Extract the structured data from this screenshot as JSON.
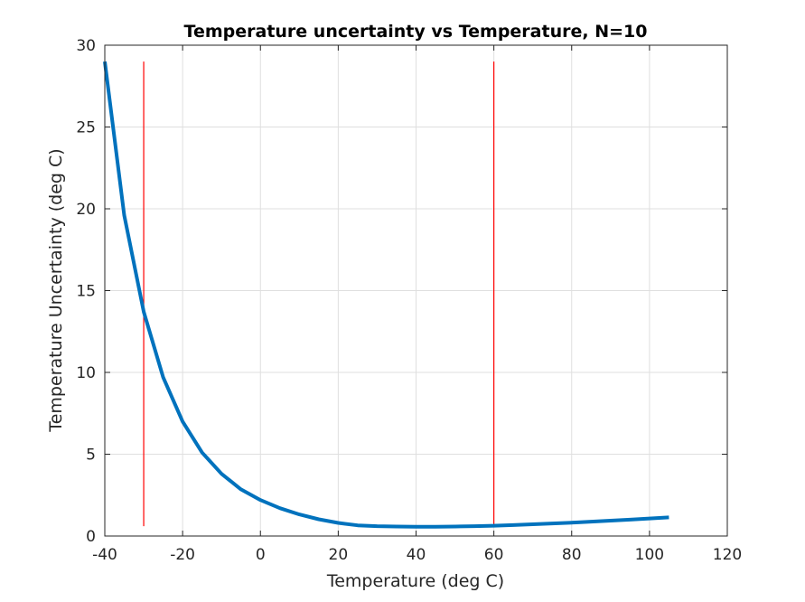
{
  "chart_data": {
    "type": "line",
    "title": "Temperature uncertainty vs Temperature, N=10",
    "xlabel": "Temperature (deg C)",
    "ylabel": "Temperature Uncertainty (deg C)",
    "xlim": [
      -40,
      120
    ],
    "ylim": [
      0,
      30
    ],
    "xticks": [
      -40,
      -20,
      0,
      20,
      40,
      60,
      80,
      100,
      120
    ],
    "yticks": [
      0,
      5,
      10,
      15,
      20,
      25,
      30
    ],
    "grid": true,
    "series": [
      {
        "color": "#0072BD",
        "x": [
          -40,
          -35,
          -30,
          -25,
          -20,
          -15,
          -10,
          -5,
          0,
          5,
          10,
          15,
          20,
          25,
          30,
          35,
          40,
          45,
          50,
          55,
          60,
          65,
          70,
          75,
          80,
          85,
          90,
          95,
          100,
          105
        ],
        "y": [
          29.0,
          19.6,
          13.7,
          9.7,
          7.0,
          5.1,
          3.8,
          2.85,
          2.2,
          1.7,
          1.32,
          1.02,
          0.8,
          0.65,
          0.6,
          0.58,
          0.57,
          0.57,
          0.58,
          0.6,
          0.63,
          0.67,
          0.72,
          0.77,
          0.82,
          0.88,
          0.94,
          1.0,
          1.07,
          1.14
        ]
      }
    ],
    "vertical_lines": [
      {
        "color": "#FF0000",
        "x": -30,
        "y": [
          0.6,
          29.0
        ]
      },
      {
        "color": "#FF0000",
        "x": 60,
        "y": [
          0.6,
          29.0
        ]
      }
    ]
  }
}
